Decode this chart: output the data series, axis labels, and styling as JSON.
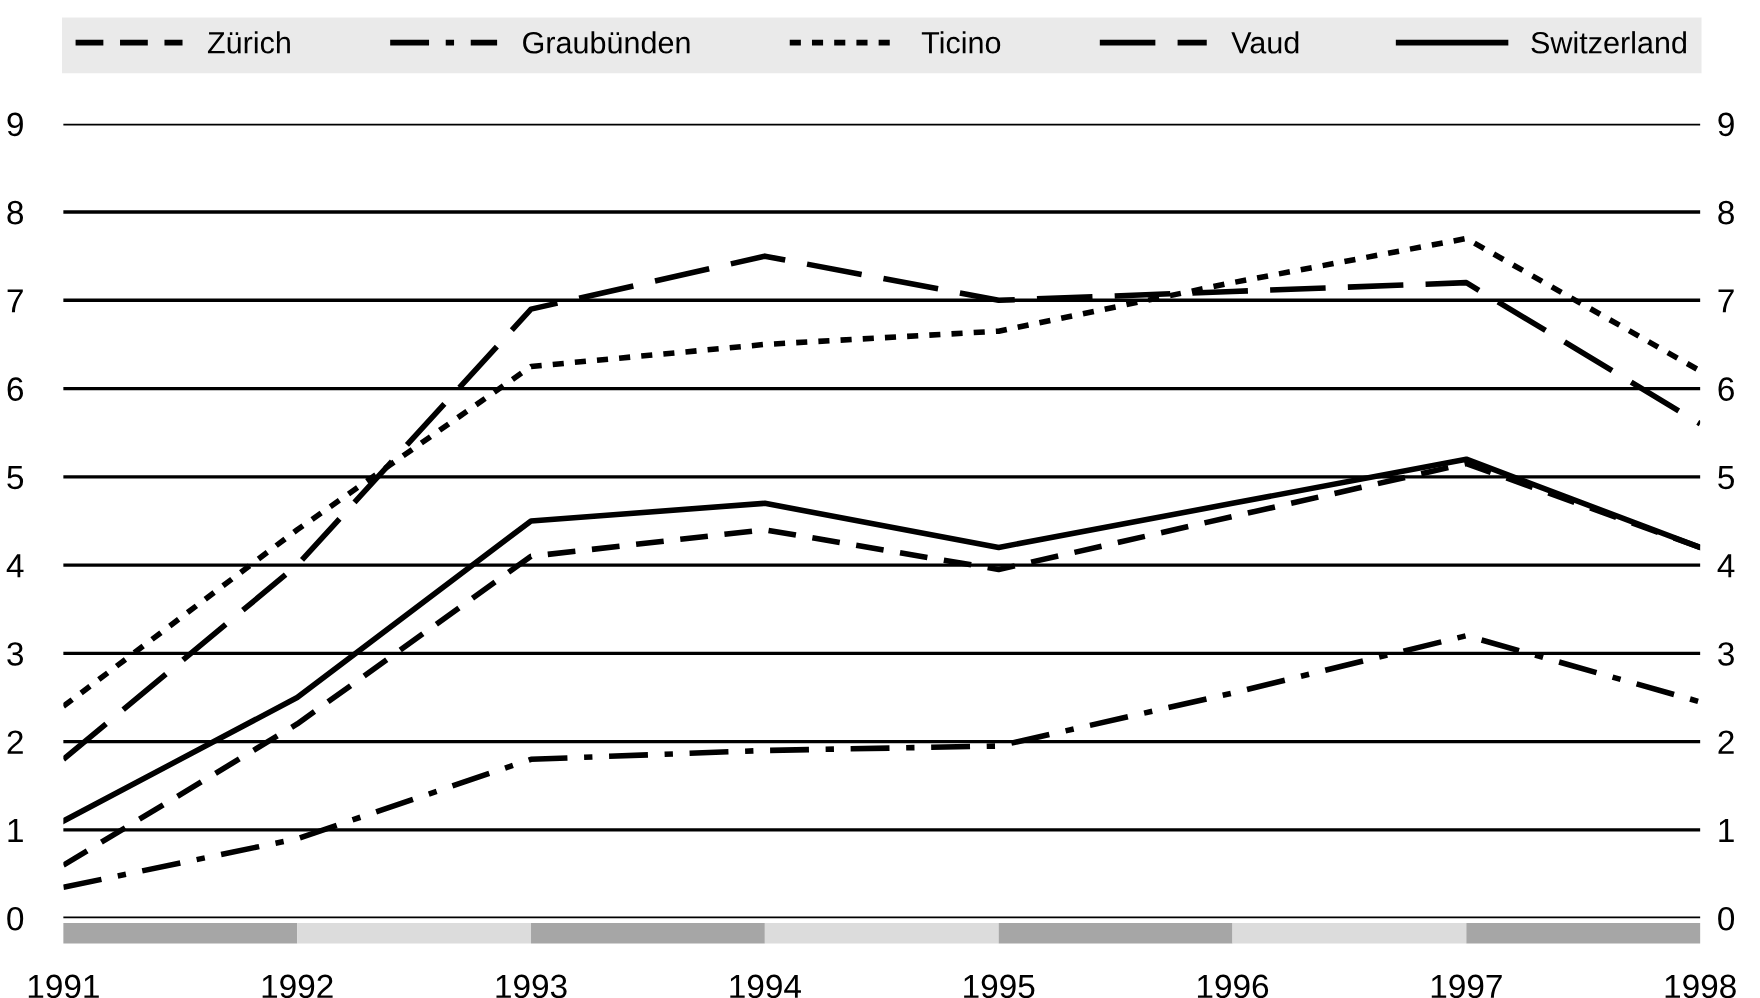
{
  "chart_data": {
    "type": "line",
    "x": [
      1991,
      1992,
      1993,
      1994,
      1995,
      1996,
      1997,
      1998
    ],
    "xlim": [
      1991,
      1998
    ],
    "xticks": [
      1991,
      1992,
      1993,
      1994,
      1995,
      1996,
      1997,
      1998
    ],
    "ylim": [
      0,
      9
    ],
    "yticks": [
      0,
      1,
      2,
      3,
      4,
      5,
      6,
      7,
      8,
      9
    ],
    "y2lim": [
      0,
      9
    ],
    "y2ticks": [
      0,
      1,
      2,
      3,
      4,
      5,
      6,
      7,
      8,
      9
    ],
    "grid": "y",
    "legend": "top",
    "marker": "none",
    "series": [
      {
        "name": "Zürich",
        "color": "#000000",
        "line_style": "dashed",
        "values": [
          0.6,
          2.2,
          4.1,
          4.4,
          3.95,
          4.55,
          5.15,
          4.2
        ]
      },
      {
        "name": "Graubünden",
        "color": "#000000",
        "line_style": "dashdot",
        "values": [
          0.35,
          0.9,
          1.8,
          1.9,
          1.95,
          2.55,
          3.2,
          2.45
        ]
      },
      {
        "name": "Ticino",
        "color": "#000000",
        "line_style": "dotted",
        "values": [
          2.4,
          4.4,
          6.25,
          6.5,
          6.65,
          7.2,
          7.7,
          6.2
        ]
      },
      {
        "name": "Vaud",
        "color": "#000000",
        "line_style": "longdash",
        "values": [
          1.8,
          4.0,
          6.9,
          7.5,
          7.0,
          7.1,
          7.2,
          5.6
        ]
      },
      {
        "name": "Switzerland",
        "color": "#000000",
        "line_style": "solid",
        "values": [
          1.1,
          2.5,
          4.5,
          4.7,
          4.2,
          4.7,
          5.2,
          4.2
        ]
      }
    ]
  }
}
